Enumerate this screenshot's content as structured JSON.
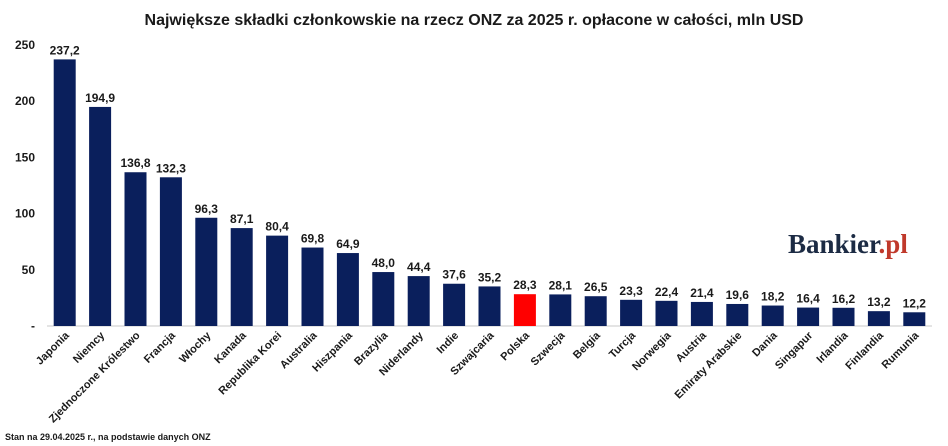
{
  "chart_data": {
    "type": "bar",
    "title": "Największe składki członkowskie na rzecz ONZ za 2025 r. opłacone w całości, mln USD",
    "categories": [
      "Japonia",
      "Niemcy",
      "Zjednoczone Królestwo",
      "Francja",
      "Włochy",
      "Kanada",
      "Republika Korei",
      "Australia",
      "Hiszpania",
      "Brazylia",
      "Niderlandy",
      "Indie",
      "Szwajcaria",
      "Polska",
      "Szwecja",
      "Belgia",
      "Turcja",
      "Norwegia",
      "Austria",
      "Emiraty Arabskie",
      "Dania",
      "Singapur",
      "Irlandia",
      "Finlandia",
      "Rumunia"
    ],
    "values": [
      237.2,
      194.9,
      136.8,
      132.3,
      96.3,
      87.1,
      80.4,
      69.8,
      64.9,
      48.0,
      44.4,
      37.6,
      35.2,
      28.3,
      28.1,
      26.5,
      23.3,
      22.4,
      21.4,
      19.6,
      18.2,
      16.4,
      16.2,
      13.2,
      12.2
    ],
    "value_labels": [
      "237,2",
      "194,9",
      "136,8",
      "132,3",
      "96,3",
      "87,1",
      "80,4",
      "69,8",
      "64,9",
      "48,0",
      "44,4",
      "37,6",
      "35,2",
      "28,3",
      "28,1",
      "26,5",
      "23,3",
      "22,4",
      "21,4",
      "19,6",
      "18,2",
      "16,4",
      "16,2",
      "13,2",
      "12,2"
    ],
    "y_ticks": [
      "-",
      "50",
      "100",
      "150",
      "200",
      "250"
    ],
    "ylim": [
      0,
      250
    ],
    "grid": false,
    "colors": {
      "bar": "#0a1f5c",
      "highlight": "#ff0000",
      "highlight_category": "Polska"
    }
  },
  "brand": {
    "name": "Bankier",
    "suffix": ".pl"
  },
  "footnote": "Stan na 29.04.2025 r., na podstawie danych ONZ"
}
